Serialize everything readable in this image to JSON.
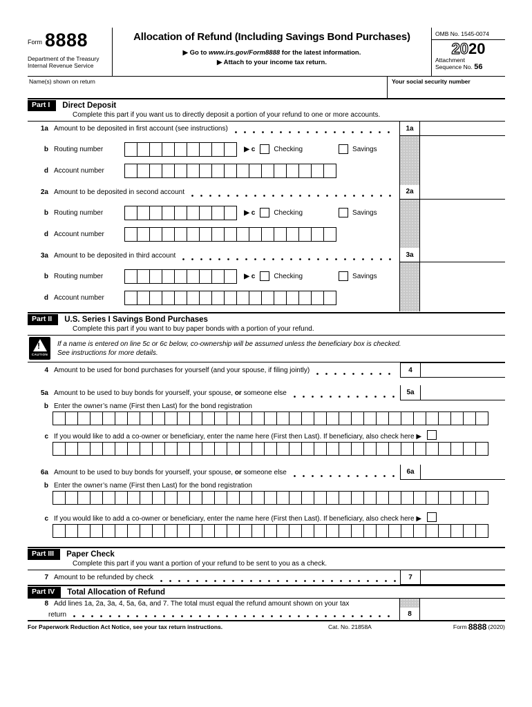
{
  "colors": {
    "paper": "#ffffff",
    "ink": "#000000",
    "shade": "#c9c9c9"
  },
  "header": {
    "form_word": "Form",
    "form_number": "8888",
    "agency_line1": "Department of the Treasury",
    "agency_line2": "Internal Revenue Service",
    "title": "Allocation of Refund (Including Savings Bond Purchases)",
    "goto_prefix": "▶ Go to ",
    "goto_link": "www.irs.gov/Form8888",
    "goto_suffix": " for the latest information.",
    "attach_line": "▶ Attach to your income tax return.",
    "omb": "OMB No. 1545-0074",
    "year_outline": "20",
    "year_bold": "20",
    "attachment_label": "Attachment",
    "sequence_label": "Sequence No. ",
    "sequence_number": "56"
  },
  "name_row": {
    "name_label": "Name(s) shown on return",
    "name_value": "",
    "ssn_label": "Your social security number",
    "ssn_value": ""
  },
  "part1": {
    "tag": "Part I",
    "title": "Direct Deposit",
    "subtitle": "Complete this part if you want us to directly deposit a portion of your refund to one or more accounts.",
    "routing_label": "Routing number",
    "account_label": "Account number",
    "b_letter": "b",
    "d_letter": "d",
    "c_prefix": "▶ c",
    "checking_label": "Checking",
    "savings_label": "Savings",
    "accounts": [
      {
        "num": "1a",
        "label": "Amount to be deposited in first account (see instructions)"
      },
      {
        "num": "2a",
        "label": "Amount to be deposited in second account"
      },
      {
        "num": "3a",
        "label": "Amount to be deposited in third account"
      }
    ]
  },
  "part2": {
    "tag": "Part II",
    "title": "U.S. Series I Savings Bond Purchases",
    "subtitle": "Complete this part if you want to buy paper bonds with a portion of your refund.",
    "caution": {
      "label": "CAUTION",
      "line1": "If a name is entered on line 5c or 6c below, co-ownership will be assumed unless the beneficiary box is checked.",
      "line2": "See instructions for more details."
    },
    "line4": {
      "num": "4",
      "label": "Amount to be used for bond purchases for yourself (and your spouse, if filing jointly)"
    },
    "b_letter": "b",
    "c_letter": "c",
    "bonds": [
      {
        "num": "5a",
        "label_pre": "Amount to be used to buy bonds for yourself, your spouse, ",
        "label_bold": "or",
        "label_post": " someone else",
        "b_label": "Enter the owner’s name (First then Last) for the bond registration",
        "c_label": "If you would like to add a co-owner or beneficiary, enter the name here (First then Last). If beneficiary, also check here ▶"
      },
      {
        "num": "6a",
        "label_pre": "Amount to be used to buy bonds for yourself, your spouse, ",
        "label_bold": "or",
        "label_post": " someone else",
        "b_label": "Enter the owner’s name (First then Last) for the bond registration",
        "c_label": "If you would like to add a co-owner or beneficiary, enter the name here (First then Last). If beneficiary, also check here ▶"
      }
    ]
  },
  "part3": {
    "tag": "Part III",
    "title": "Paper Check",
    "subtitle": "Complete this part if you want a portion of your refund to be sent to you as a check.",
    "line7": {
      "num": "7",
      "label": "Amount to be refunded by check"
    }
  },
  "part4": {
    "tag": "Part IV",
    "title": "Total Allocation of Refund",
    "line8": {
      "num": "8",
      "label_line1": "Add lines 1a, 2a, 3a, 4, 5a, 6a, and 7. The total must equal the refund amount shown on your tax",
      "label_line2": "return"
    }
  },
  "footer": {
    "left": "For Paperwork Reduction Act Notice, see your tax return instructions.",
    "cat": "Cat. No. 21858A",
    "form_word": "Form",
    "form_number": "8888",
    "year": "(2020)"
  }
}
